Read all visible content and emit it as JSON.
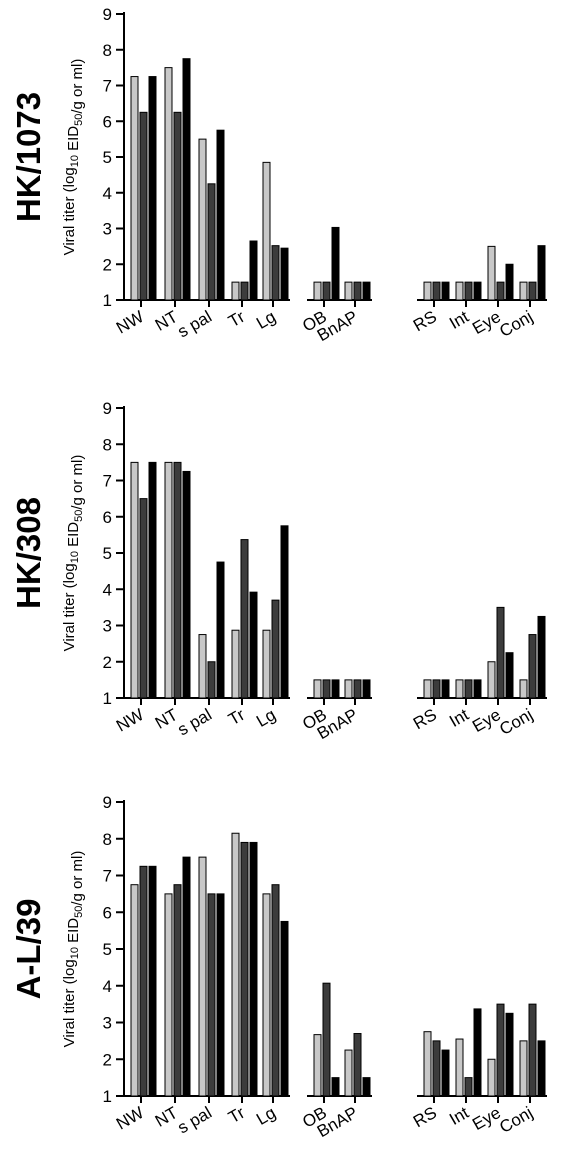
{
  "chart_data": [
    {
      "type": "bar",
      "title": "HK/1073",
      "ylabel": "Viral titer (log10 EID50/g or ml)",
      "ylim": [
        1,
        9
      ],
      "yticks": [
        1,
        2,
        3,
        4,
        5,
        6,
        7,
        8,
        9
      ],
      "categories": [
        "NW",
        "NT",
        "s pal",
        "Tr",
        "Lg",
        "OB",
        "BnAP",
        "RS",
        "Int",
        "Eye",
        "Conj"
      ],
      "category_groups": [
        [
          "NW",
          "NT",
          "s pal",
          "Tr",
          "Lg"
        ],
        [
          "OB",
          "BnAP"
        ],
        [
          "RS",
          "Int",
          "Eye",
          "Conj"
        ]
      ],
      "series": [
        {
          "color": "#c8c8c8",
          "values": [
            7.25,
            7.5,
            5.5,
            1.5,
            4.85,
            1.5,
            1.5,
            1.5,
            1.5,
            2.5,
            1.5
          ]
        },
        {
          "color": "#3c3c3c",
          "values": [
            6.25,
            6.25,
            4.25,
            1.5,
            2.52,
            1.5,
            1.5,
            1.5,
            1.5,
            1.5,
            1.5
          ]
        },
        {
          "color": "#000000",
          "values": [
            7.25,
            7.75,
            5.75,
            2.65,
            2.45,
            3.03,
            1.5,
            1.5,
            1.5,
            2.0,
            2.52
          ]
        }
      ]
    },
    {
      "type": "bar",
      "title": "HK/308",
      "ylabel": "Viral titer (log10 EID50/g or ml)",
      "ylim": [
        1,
        9
      ],
      "yticks": [
        1,
        2,
        3,
        4,
        5,
        6,
        7,
        8,
        9
      ],
      "categories": [
        "NW",
        "NT",
        "s pal",
        "Tr",
        "Lg",
        "OB",
        "BnAP",
        "RS",
        "Int",
        "Eye",
        "Conj"
      ],
      "category_groups": [
        [
          "NW",
          "NT",
          "s pal",
          "Tr",
          "Lg"
        ],
        [
          "OB",
          "BnAP"
        ],
        [
          "RS",
          "Int",
          "Eye",
          "Conj"
        ]
      ],
      "series": [
        {
          "color": "#c8c8c8",
          "values": [
            7.5,
            7.5,
            2.75,
            2.87,
            2.87,
            1.5,
            1.5,
            1.5,
            1.5,
            2.0,
            1.5
          ]
        },
        {
          "color": "#3c3c3c",
          "values": [
            6.5,
            7.5,
            2.0,
            5.37,
            3.7,
            1.5,
            1.5,
            1.5,
            1.5,
            3.5,
            2.75
          ]
        },
        {
          "color": "#000000",
          "values": [
            7.5,
            7.25,
            4.75,
            3.92,
            5.75,
            1.5,
            1.5,
            1.5,
            1.5,
            2.25,
            3.25
          ]
        }
      ]
    },
    {
      "type": "bar",
      "title": "A-L/39",
      "ylabel": "Viral titer (log10 EID50/g or ml)",
      "ylim": [
        1,
        9
      ],
      "yticks": [
        1,
        2,
        3,
        4,
        5,
        6,
        7,
        8,
        9
      ],
      "categories": [
        "NW",
        "NT",
        "s pal",
        "Tr",
        "Lg",
        "OB",
        "BnAP",
        "RS",
        "Int",
        "Eye",
        "Conj"
      ],
      "category_groups": [
        [
          "NW",
          "NT",
          "s pal",
          "Tr",
          "Lg"
        ],
        [
          "OB",
          "BnAP"
        ],
        [
          "RS",
          "Int",
          "Eye",
          "Conj"
        ]
      ],
      "series": [
        {
          "color": "#c8c8c8",
          "values": [
            6.75,
            6.5,
            7.5,
            8.15,
            6.5,
            2.67,
            2.25,
            2.75,
            2.55,
            2.0,
            2.5
          ]
        },
        {
          "color": "#3c3c3c",
          "values": [
            7.25,
            6.75,
            6.5,
            7.9,
            6.75,
            4.07,
            2.7,
            2.5,
            1.5,
            3.5,
            3.5
          ]
        },
        {
          "color": "#000000",
          "values": [
            7.25,
            7.5,
            6.5,
            7.9,
            5.75,
            1.5,
            1.5,
            2.25,
            3.37,
            3.25,
            2.5
          ]
        }
      ]
    }
  ]
}
